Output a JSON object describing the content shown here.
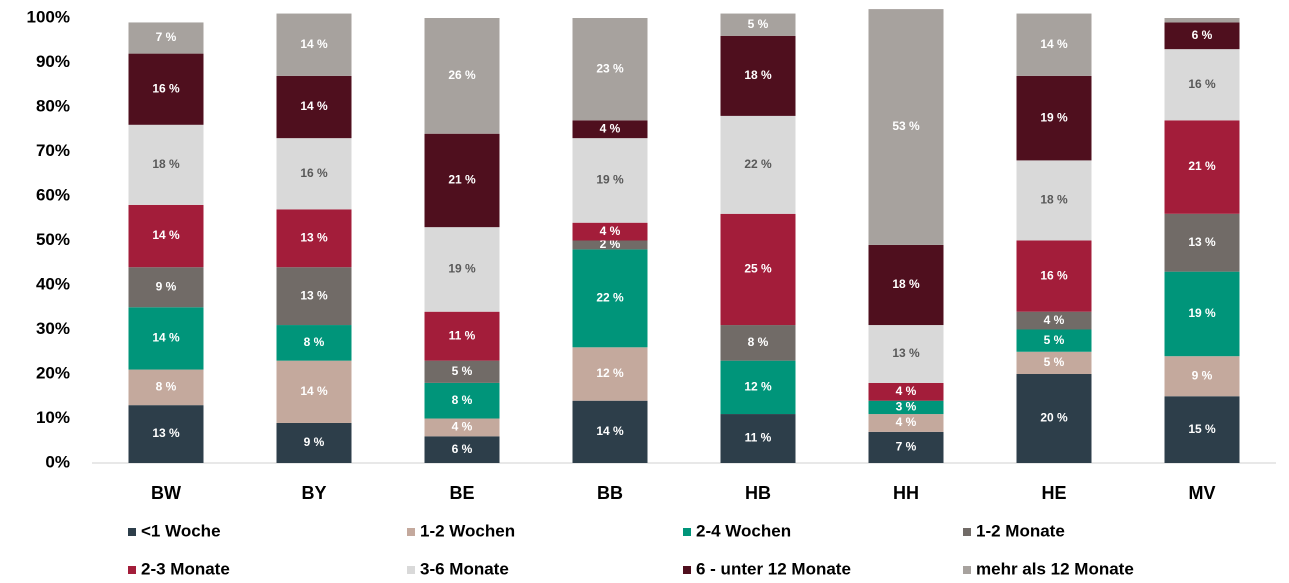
{
  "chart_data": {
    "type": "stacked_bar",
    "categories": [
      "BW",
      "BY",
      "BE",
      "BB",
      "HB",
      "HH",
      "HE",
      "MV"
    ],
    "ylim": [
      0,
      100
    ],
    "yticks": [
      {
        "value": 0,
        "label": "0%"
      },
      {
        "value": 10,
        "label": "10%"
      },
      {
        "value": 20,
        "label": "20%"
      },
      {
        "value": 30,
        "label": "30%"
      },
      {
        "value": 40,
        "label": "40%"
      },
      {
        "value": 50,
        "label": "50%"
      },
      {
        "value": 60,
        "label": "60%"
      },
      {
        "value": 70,
        "label": "70%"
      },
      {
        "value": 80,
        "label": "80%"
      },
      {
        "value": 90,
        "label": "90%"
      },
      {
        "value": 100,
        "label": "100%"
      }
    ],
    "legend": "bottom",
    "series": [
      {
        "name": "<1 Woche",
        "color": "#2d3e4a",
        "values": [
          13,
          9,
          6,
          14,
          11,
          7,
          20,
          15
        ],
        "value_labels": [
          "13 %",
          "9 %",
          "6 %",
          "14 %",
          "11 %",
          "7 %",
          "20 %",
          "15 %"
        ]
      },
      {
        "name": "1-2 Wochen",
        "color": "#c4a99d",
        "values": [
          8,
          14,
          4,
          12,
          0,
          4,
          5,
          9
        ],
        "value_labels": [
          "8 %",
          "14 %",
          "4 %",
          "12 %",
          null,
          "4 %",
          "5 %",
          "9 %"
        ]
      },
      {
        "name": "2-4 Wochen",
        "color": "#00957a",
        "values": [
          14,
          8,
          8,
          22,
          12,
          3,
          5,
          19
        ],
        "value_labels": [
          "14 %",
          "8 %",
          "8 %",
          "22 %",
          "12 %",
          "3 %",
          "5 %",
          "19 %"
        ]
      },
      {
        "name": "1-2 Monate",
        "color": "#716b67",
        "values": [
          9,
          13,
          5,
          2,
          8,
          0,
          4,
          13
        ],
        "value_labels": [
          "9 %",
          "13 %",
          "5 %",
          "2 %",
          "8 %",
          null,
          "4 %",
          "13 %"
        ]
      },
      {
        "name": "2-3 Monate",
        "color": "#a31d3a",
        "values": [
          14,
          13,
          11,
          4,
          25,
          4,
          16,
          21
        ],
        "value_labels": [
          "14 %",
          "13 %",
          "11 %",
          "4 %",
          "25 %",
          "4 %",
          "16 %",
          "21 %"
        ]
      },
      {
        "name": "3-6 Monate",
        "color": "#d9d9d9",
        "values": [
          18,
          16,
          19,
          19,
          22,
          13,
          18,
          16
        ],
        "value_labels": [
          "18 %",
          "16 %",
          "19 %",
          "19 %",
          "22 %",
          "13 %",
          "18 %",
          "16 %"
        ]
      },
      {
        "name": "6 - unter 12 Monate",
        "color": "#4f0f1e",
        "values": [
          16,
          14,
          21,
          4,
          18,
          18,
          19,
          6
        ],
        "value_labels": [
          "16 %",
          "14 %",
          "21 %",
          "4 %",
          "18 %",
          "18 %",
          "19 %",
          "6 %"
        ]
      },
      {
        "name": "mehr als 12 Monate",
        "color": "#a7a29e",
        "values": [
          7,
          14,
          26,
          23,
          5,
          53,
          14,
          1
        ],
        "value_labels": [
          "7 %",
          "14 %",
          "26 %",
          "23 %",
          "5 %",
          "53 %",
          "14 %",
          null
        ]
      }
    ]
  }
}
